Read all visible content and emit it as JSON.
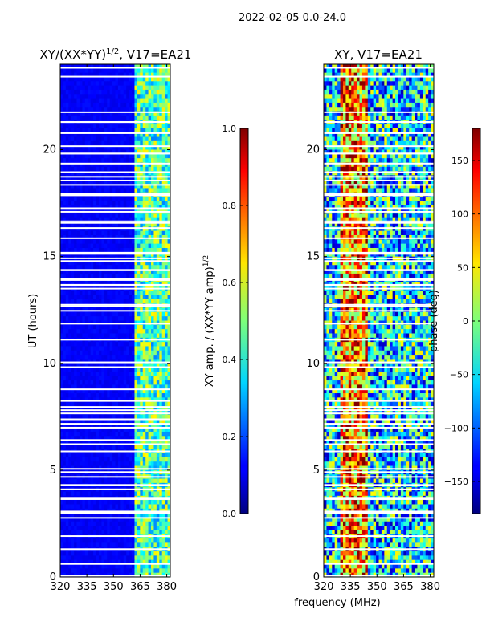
{
  "suptitle": "2022-02-05 0.0-24.0",
  "chart_data": [
    {
      "type": "heatmap",
      "title_main": "XY/(XX*YY)",
      "title_exp": "1/2",
      "title_rest": ", V17=EA21",
      "ylabel": "UT (hours)",
      "xlabel": "",
      "xlim": [
        320,
        382
      ],
      "ylim": [
        0,
        24
      ],
      "xticks": [
        "320",
        "335",
        "350",
        "365",
        "380"
      ],
      "xtick_values": [
        320,
        335,
        350,
        365,
        380
      ],
      "yticks": [
        "0",
        "5",
        "10",
        "15",
        "20"
      ],
      "ytick_values": [
        0,
        5,
        10,
        15,
        20
      ],
      "colorbar": {
        "label_main": "XY amp. / (XX*YY amp)",
        "label_exp": "1/2",
        "range": [
          0.0,
          1.0
        ],
        "ticks": [
          "0.0",
          "0.2",
          "0.4",
          "0.6",
          "0.8",
          "1.0"
        ],
        "tick_values": [
          0.0,
          0.2,
          0.4,
          0.6,
          0.8,
          1.0
        ],
        "colormap": "jet"
      }
    },
    {
      "type": "heatmap",
      "title": "XY, V17=EA21",
      "xlabel": "frequency (MHz)",
      "ylabel": "",
      "xlim": [
        320,
        382
      ],
      "ylim": [
        0,
        24
      ],
      "xticks": [
        "320",
        "335",
        "350",
        "365",
        "380"
      ],
      "xtick_values": [
        320,
        335,
        350,
        365,
        380
      ],
      "yticks": [
        "0",
        "5",
        "10",
        "15",
        "20"
      ],
      "ytick_values": [
        0,
        5,
        10,
        15,
        20
      ],
      "colorbar": {
        "label": "phase (deg)",
        "range": [
          -180,
          180
        ],
        "ticks": [
          "−150",
          "−100",
          "−50",
          "0",
          "50",
          "100",
          "150"
        ],
        "tick_values": [
          -150,
          -100,
          -50,
          0,
          50,
          100,
          150
        ],
        "colormap": "jet"
      }
    }
  ]
}
